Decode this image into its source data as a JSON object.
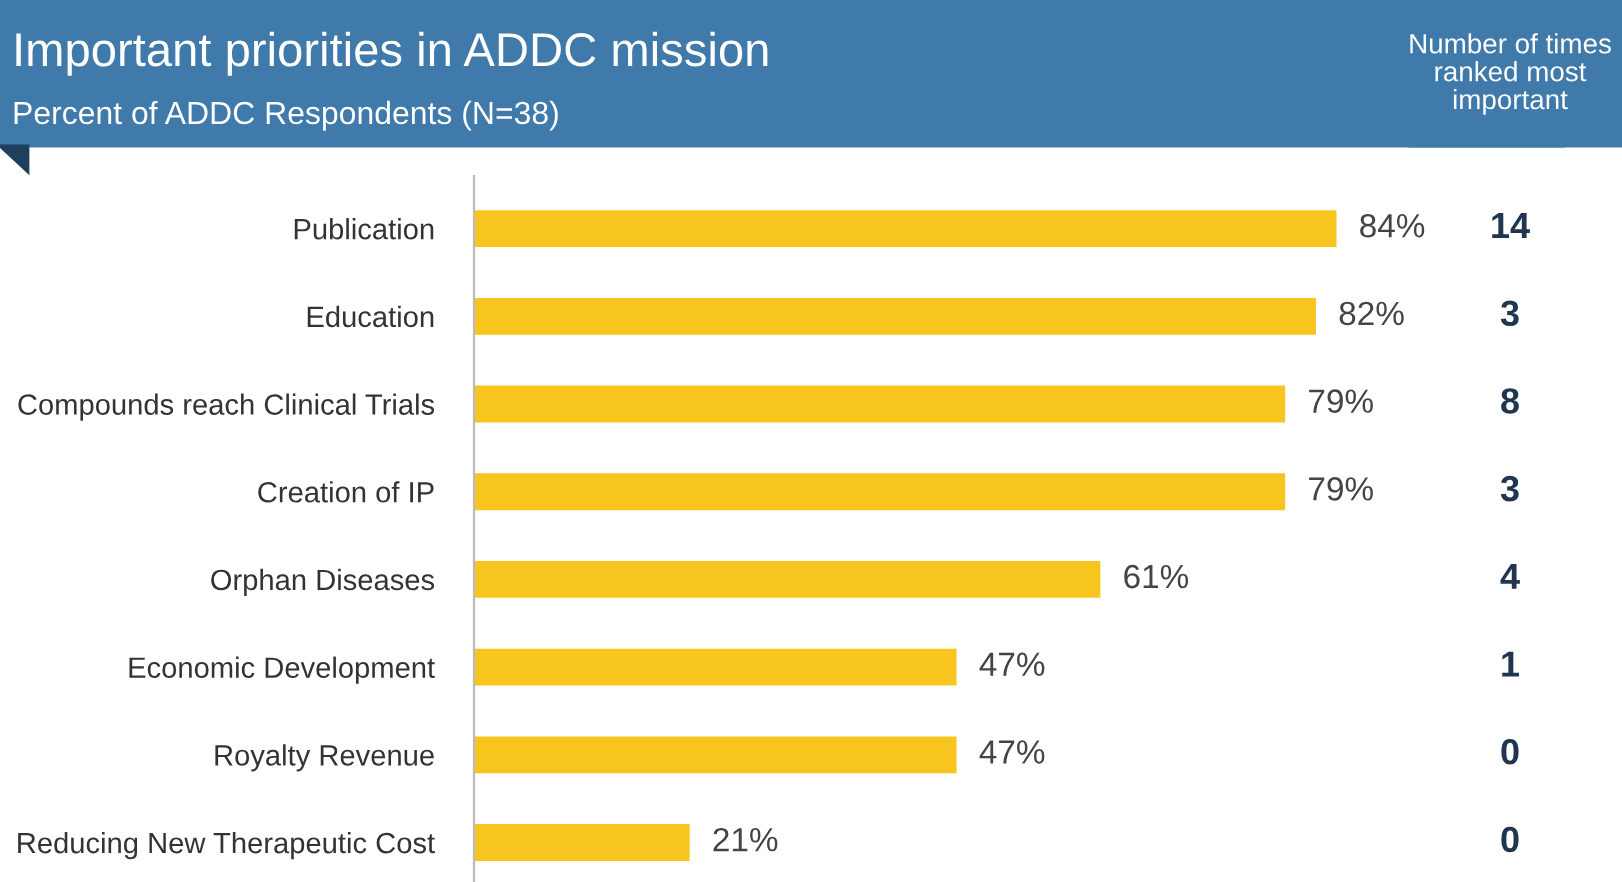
{
  "chart_data": {
    "type": "bar",
    "orientation": "horizontal",
    "title": "Important priorities in ADDC mission",
    "subtitle": "Percent of ADDC Respondents (N=38)",
    "categories": [
      "Publication",
      "Education",
      "Compounds reach Clinical Trials",
      "Creation of IP",
      "Orphan Diseases",
      "Economic Development",
      "Royalty Revenue",
      "Reducing New Therapeutic Cost"
    ],
    "values": [
      84,
      82,
      79,
      79,
      61,
      47,
      47,
      21
    ],
    "value_labels": [
      "84%",
      "82%",
      "79%",
      "79%",
      "61%",
      "47%",
      "47%",
      "21%"
    ],
    "color": "#f8c51f",
    "annotations": [
      "Number of times ranked most important",
      "14",
      "3",
      "8",
      "3",
      "4",
      "1",
      "0",
      "0"
    ],
    "grid": false
  }
}
